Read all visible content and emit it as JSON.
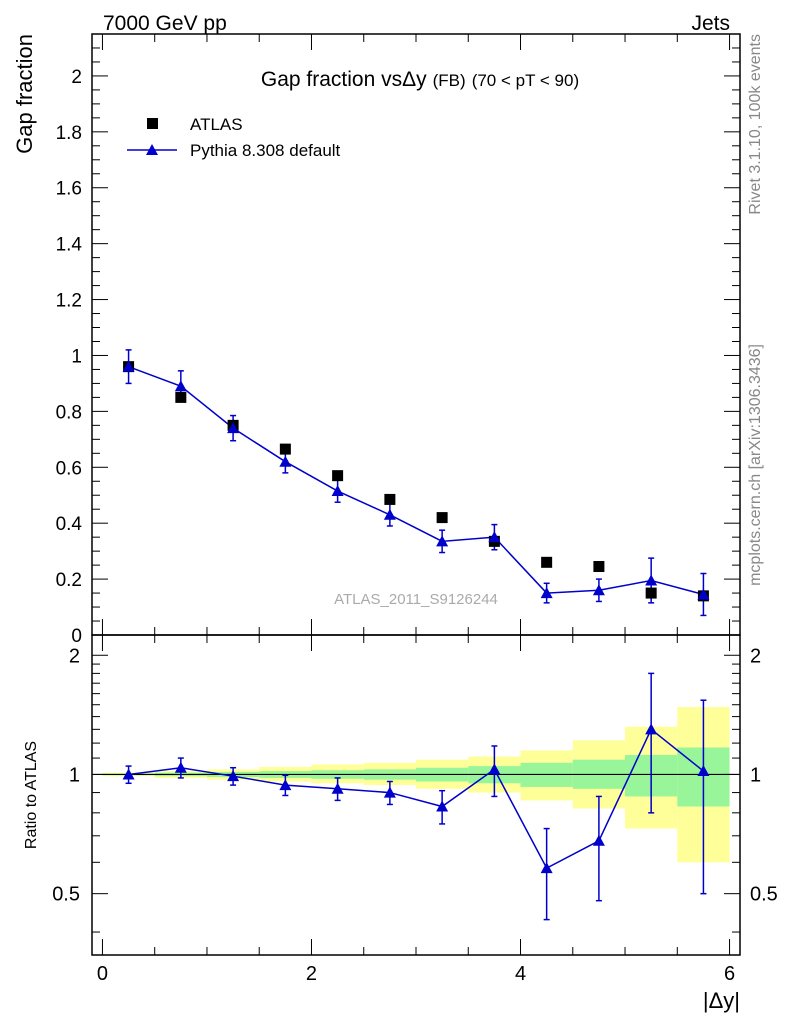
{
  "header": {
    "left": "7000 GeV pp",
    "right": "Jets"
  },
  "side": {
    "rivet": "Rivet 3.1.10,  100k events",
    "mcplots": "mcplots.cern.ch [arXiv:1306.3436]"
  },
  "colors": {
    "data": "#000000",
    "mc": "#0000cc",
    "band_inner": "#99f599",
    "band_outer": "#ffff99",
    "watermark": "#aaaaaa"
  },
  "chart_data": [
    {
      "type": "scatter",
      "panel": "main",
      "title_main": "Gap fraction vs",
      "title_sym": "Δy",
      "title_small": "(FB)",
      "title_range": "(70 < pT <  90)",
      "ylabel": "Gap fraction",
      "watermark": "ATLAS_2011_S9126244",
      "legend_position": "top-left",
      "xlim": [
        -0.1,
        6.1
      ],
      "ylim": [
        0,
        2.15
      ],
      "yticks": [
        0,
        0.2,
        0.4,
        0.6,
        0.8,
        1,
        1.2,
        1.4,
        1.6,
        1.8,
        2
      ],
      "ytick_labels": [
        "0",
        "0.2",
        "0.4",
        "0.6",
        "0.8",
        "1",
        "1.2",
        "1.4",
        "1.6",
        "1.8",
        "2"
      ],
      "series": [
        {
          "name": "ATLAS",
          "marker": "square",
          "x": [
            0.25,
            0.75,
            1.25,
            1.75,
            2.25,
            2.75,
            3.25,
            3.75,
            4.25,
            4.75,
            5.25,
            5.75
          ],
          "y": [
            0.96,
            0.85,
            0.75,
            0.665,
            0.57,
            0.485,
            0.42,
            0.335,
            0.26,
            0.245,
            0.15,
            0.14
          ]
        },
        {
          "name": "Pythia 8.308 default",
          "marker": "triangle",
          "x": [
            0.25,
            0.75,
            1.25,
            1.75,
            2.25,
            2.75,
            3.25,
            3.75,
            4.25,
            4.75,
            5.25,
            5.75
          ],
          "y": [
            0.96,
            0.89,
            0.74,
            0.62,
            0.515,
            0.43,
            0.335,
            0.35,
            0.15,
            0.16,
            0.195,
            0.145
          ],
          "err": [
            0.06,
            0.055,
            0.045,
            0.04,
            0.04,
            0.04,
            0.04,
            0.045,
            0.035,
            0.04,
            0.08,
            0.075
          ]
        }
      ]
    },
    {
      "type": "line",
      "panel": "ratio",
      "ylabel": "Ratio to ATLAS",
      "xlabel": "|Δy|",
      "xlim": [
        -0.1,
        6.1
      ],
      "ylim": [
        0.35,
        2.25
      ],
      "xticks": [
        0,
        2,
        4,
        6
      ],
      "xtick_labels": [
        "0",
        "2",
        "4",
        "6"
      ],
      "yticks": [
        0.5,
        1,
        2
      ],
      "ytick_labels": [
        "0.5",
        "1",
        "2"
      ],
      "bands": {
        "edges": [
          0,
          0.5,
          1,
          1.5,
          2,
          2.5,
          3,
          3.5,
          4,
          4.5,
          5,
          5.5,
          6
        ],
        "inner_lo": [
          0.995,
          0.99,
          0.985,
          0.98,
          0.975,
          0.97,
          0.96,
          0.95,
          0.93,
          0.92,
          0.88,
          0.83
        ],
        "inner_hi": [
          1.005,
          1.01,
          1.015,
          1.02,
          1.025,
          1.03,
          1.04,
          1.05,
          1.07,
          1.09,
          1.12,
          1.17
        ],
        "outer_lo": [
          0.99,
          0.98,
          0.97,
          0.96,
          0.95,
          0.94,
          0.92,
          0.9,
          0.86,
          0.82,
          0.73,
          0.6
        ],
        "outer_hi": [
          1.01,
          1.02,
          1.03,
          1.045,
          1.06,
          1.07,
          1.09,
          1.11,
          1.15,
          1.22,
          1.32,
          1.48
        ]
      },
      "series": [
        {
          "name": "Pythia 8.308 default / ATLAS",
          "x": [
            0.25,
            0.75,
            1.25,
            1.75,
            2.25,
            2.75,
            3.25,
            3.75,
            4.25,
            4.75,
            5.25,
            5.75
          ],
          "y": [
            1.0,
            1.04,
            0.99,
            0.94,
            0.92,
            0.9,
            0.83,
            1.03,
            0.58,
            0.68,
            1.3,
            1.02
          ],
          "err": [
            0.05,
            0.06,
            0.05,
            0.055,
            0.06,
            0.06,
            0.08,
            0.15,
            0.15,
            0.2,
            0.5,
            0.52
          ]
        }
      ]
    }
  ]
}
